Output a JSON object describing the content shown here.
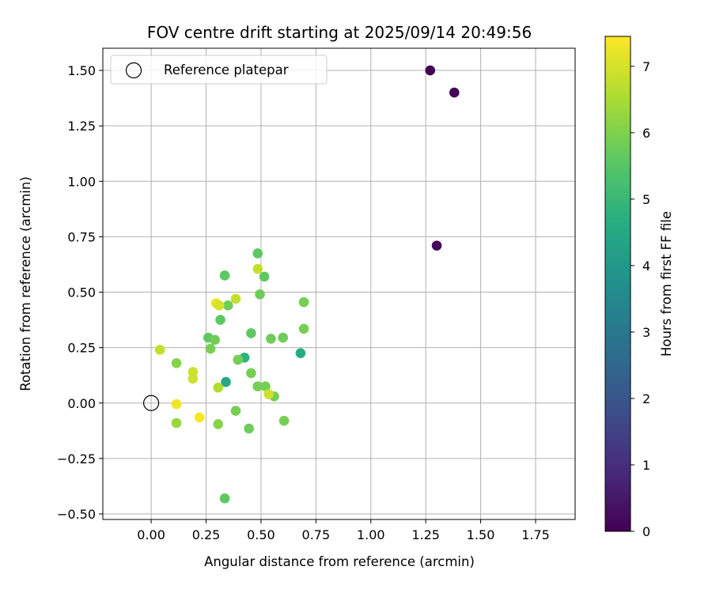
{
  "chart_data": {
    "type": "scatter",
    "title": "FOV centre drift starting at 2025/09/14 20:49:56",
    "xlabel": "Angular distance from reference (arcmin)",
    "ylabel": "Rotation from reference (arcmin)",
    "xlim": [
      -0.22,
      1.93
    ],
    "ylim": [
      -0.525,
      1.6
    ],
    "x_ticks": [
      0.0,
      0.25,
      0.5,
      0.75,
      1.0,
      1.25,
      1.5,
      1.75
    ],
    "x_tick_labels": [
      "0.00",
      "0.25",
      "0.50",
      "0.75",
      "1.00",
      "1.25",
      "1.50",
      "1.75"
    ],
    "y_ticks": [
      -0.5,
      -0.25,
      0.0,
      0.25,
      0.5,
      0.75,
      1.0,
      1.25,
      1.5
    ],
    "y_tick_labels": [
      "−0.50",
      "−0.25",
      "0.00",
      "0.25",
      "0.50",
      "0.75",
      "1.00",
      "1.25",
      "1.50"
    ],
    "grid": true,
    "legend": {
      "position": "top-left",
      "label": "Reference platepar"
    },
    "colorbar": {
      "label": "Hours from first FF file",
      "range": [
        0,
        7.45
      ],
      "ticks": [
        0,
        1,
        2,
        3,
        4,
        5,
        6,
        7
      ],
      "tick_labels": [
        "0",
        "1",
        "2",
        "3",
        "4",
        "5",
        "6",
        "7"
      ],
      "colormap": "viridis"
    },
    "reference_point": {
      "x": 0.0,
      "y": 0.0
    },
    "points": [
      {
        "x": 1.27,
        "y": 1.5,
        "hours": 0.0
      },
      {
        "x": 1.38,
        "y": 1.4,
        "hours": 0.05
      },
      {
        "x": 1.3,
        "y": 0.71,
        "hours": 0.15
      },
      {
        "x": 0.68,
        "y": 0.225,
        "hours": 4.6
      },
      {
        "x": 0.425,
        "y": 0.205,
        "hours": 4.8
      },
      {
        "x": 0.34,
        "y": 0.095,
        "hours": 4.5
      },
      {
        "x": 0.485,
        "y": 0.675,
        "hours": 5.6
      },
      {
        "x": 0.335,
        "y": 0.575,
        "hours": 5.6
      },
      {
        "x": 0.515,
        "y": 0.57,
        "hours": 5.6
      },
      {
        "x": 0.495,
        "y": 0.49,
        "hours": 5.8
      },
      {
        "x": 0.35,
        "y": 0.44,
        "hours": 5.8
      },
      {
        "x": 0.695,
        "y": 0.455,
        "hours": 5.9
      },
      {
        "x": 0.315,
        "y": 0.375,
        "hours": 5.6
      },
      {
        "x": 0.695,
        "y": 0.335,
        "hours": 5.9
      },
      {
        "x": 0.455,
        "y": 0.315,
        "hours": 5.6
      },
      {
        "x": 0.545,
        "y": 0.29,
        "hours": 5.8
      },
      {
        "x": 0.6,
        "y": 0.295,
        "hours": 5.8
      },
      {
        "x": 0.26,
        "y": 0.295,
        "hours": 5.6
      },
      {
        "x": 0.29,
        "y": 0.285,
        "hours": 5.8
      },
      {
        "x": 0.27,
        "y": 0.245,
        "hours": 5.9
      },
      {
        "x": 0.395,
        "y": 0.195,
        "hours": 5.9
      },
      {
        "x": 0.455,
        "y": 0.135,
        "hours": 5.9
      },
      {
        "x": 0.485,
        "y": 0.075,
        "hours": 5.9
      },
      {
        "x": 0.52,
        "y": 0.075,
        "hours": 5.9
      },
      {
        "x": 0.56,
        "y": 0.03,
        "hours": 5.9
      },
      {
        "x": 0.385,
        "y": -0.035,
        "hours": 5.9
      },
      {
        "x": 0.445,
        "y": -0.115,
        "hours": 5.8
      },
      {
        "x": 0.605,
        "y": -0.08,
        "hours": 5.9
      },
      {
        "x": 0.335,
        "y": -0.43,
        "hours": 5.6
      },
      {
        "x": 0.115,
        "y": 0.18,
        "hours": 6.1
      },
      {
        "x": 0.305,
        "y": -0.095,
        "hours": 6.1
      },
      {
        "x": 0.115,
        "y": -0.09,
        "hours": 6.3
      },
      {
        "x": 0.305,
        "y": 0.07,
        "hours": 6.6
      },
      {
        "x": 0.04,
        "y": 0.24,
        "hours": 6.8
      },
      {
        "x": 0.485,
        "y": 0.605,
        "hours": 6.8
      },
      {
        "x": 0.385,
        "y": 0.47,
        "hours": 6.8
      },
      {
        "x": 0.19,
        "y": 0.14,
        "hours": 6.9
      },
      {
        "x": 0.19,
        "y": 0.11,
        "hours": 6.9
      },
      {
        "x": 0.535,
        "y": 0.04,
        "hours": 6.9
      },
      {
        "x": 0.295,
        "y": 0.45,
        "hours": 7.2
      },
      {
        "x": 0.31,
        "y": 0.44,
        "hours": 7.0
      },
      {
        "x": 0.115,
        "y": -0.005,
        "hours": 7.3
      },
      {
        "x": 0.22,
        "y": -0.065,
        "hours": 7.4
      }
    ]
  }
}
